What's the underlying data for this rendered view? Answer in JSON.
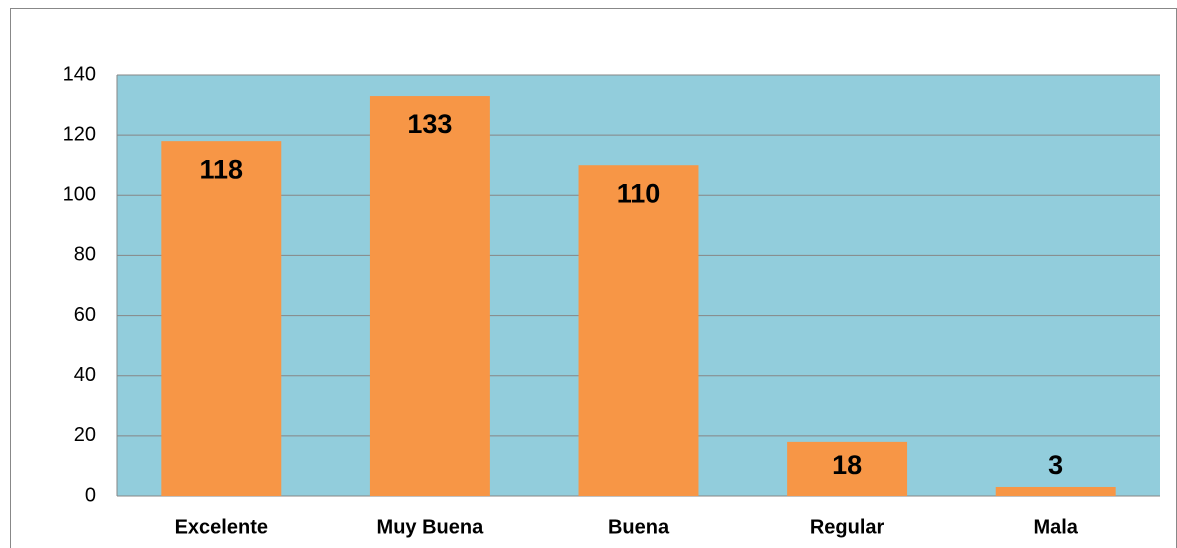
{
  "chart_data": {
    "type": "bar",
    "categories": [
      "Excelente",
      "Muy Buena",
      "Buena",
      "Regular",
      "Mala"
    ],
    "values": [
      118,
      133,
      110,
      18,
      3
    ],
    "color": "#f79646",
    "ylim": [
      0,
      140
    ],
    "yticks": [
      0,
      20,
      40,
      60,
      80,
      100,
      120,
      140
    ],
    "grid": true
  }
}
